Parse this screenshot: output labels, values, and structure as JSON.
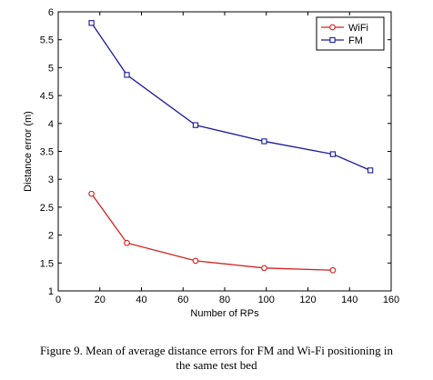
{
  "chart_data": {
    "type": "line",
    "xlabel": "Number of RPs",
    "ylabel": "Distance error (m)",
    "xlim": [
      0,
      160
    ],
    "ylim": [
      1,
      6
    ],
    "xticks": [
      0,
      20,
      40,
      60,
      80,
      100,
      120,
      140,
      160
    ],
    "yticks": [
      1,
      1.5,
      2,
      2.5,
      3,
      3.5,
      4,
      4.5,
      5,
      5.5,
      6
    ],
    "grid": false,
    "legend_position": "top-right",
    "series": [
      {
        "name": "WiFi",
        "color": "#d42020",
        "marker": "circle",
        "x": [
          16,
          33,
          66,
          99,
          132
        ],
        "y": [
          2.74,
          1.86,
          1.54,
          1.41,
          1.37
        ]
      },
      {
        "name": "FM",
        "color": "#1a1a9c",
        "marker": "square",
        "x": [
          16,
          33,
          66,
          99,
          132,
          150
        ],
        "y": [
          5.8,
          4.87,
          3.97,
          3.68,
          3.45,
          3.16
        ]
      }
    ]
  },
  "caption": {
    "line1": "Figure 9.   Mean of average distance errors for FM and Wi-Fi positioning in",
    "line2": "the same test bed"
  }
}
